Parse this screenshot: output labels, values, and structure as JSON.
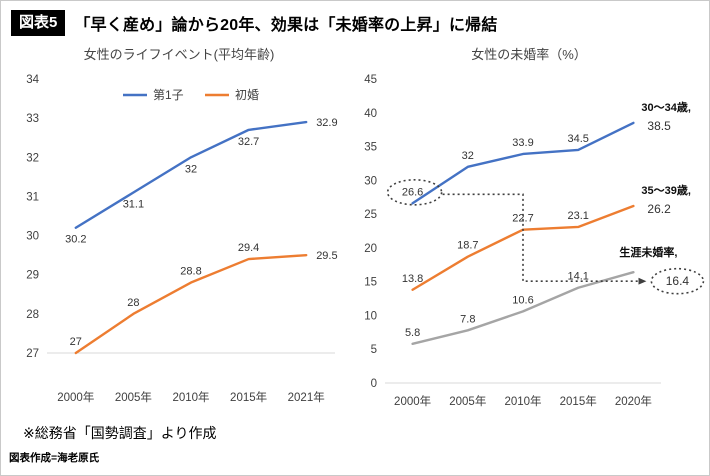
{
  "header": {
    "badge": "図表5",
    "title": "「早く産め」論から20年、効果は「未婚率の上昇」に帰結"
  },
  "footer": {
    "source": "※総務省「国勢調査」より作成",
    "credit": "図表作成=海老原氏"
  },
  "colors": {
    "series_blue": "#4472C4",
    "series_orange": "#ED7D31",
    "series_gray": "#A5A5A5",
    "annotation_ink": "#3f3f3f",
    "badge_bg": "#000000",
    "axis_line": "#d9d9d9"
  },
  "chart_data": [
    {
      "type": "line",
      "title": "女性のライフイベント(平均年齢)",
      "categories": [
        "2000年",
        "2005年",
        "2010年",
        "2015年",
        "2021年"
      ],
      "ylim": [
        27,
        34
      ],
      "ytick_step": 1,
      "grid": false,
      "legend_position": "top",
      "series": [
        {
          "name": "第1子",
          "color": "#4472C4",
          "label_side": "below",
          "values": [
            30.2,
            31.1,
            32,
            32.7,
            32.9
          ]
        },
        {
          "name": "初婚",
          "color": "#ED7D31",
          "label_side": "above",
          "values": [
            27,
            28,
            28.8,
            29.4,
            29.5
          ]
        }
      ]
    },
    {
      "type": "line",
      "title": "女性の未婚率（%）",
      "categories": [
        "2000年",
        "2005年",
        "2010年",
        "2015年",
        "2020年"
      ],
      "ylim": [
        0,
        45
      ],
      "ytick_step": 5,
      "grid": false,
      "legend_position": "none",
      "series": [
        {
          "name": "30〜34歳",
          "color": "#4472C4",
          "label_side": "above",
          "end_label": "30〜34歳,",
          "values": [
            26.6,
            32,
            33.9,
            34.5,
            38.5
          ]
        },
        {
          "name": "35〜39歳",
          "color": "#ED7D31",
          "label_side": "above",
          "end_label": "35〜39歳,",
          "values": [
            13.8,
            18.7,
            22.7,
            23.1,
            26.2
          ]
        },
        {
          "name": "生涯未婚率",
          "color": "#A5A5A5",
          "label_side": "above",
          "end_label": "生涯未婚率,",
          "values": [
            5.8,
            7.8,
            10.6,
            14.1,
            16.4
          ]
        }
      ],
      "annotations": {
        "circled_values": [
          "26.6",
          "16.4"
        ],
        "connector": "dotted arrow from 26.6 (2000, 30〜34歳) to 16.4 (2020, 生涯未婚率)"
      }
    }
  ]
}
